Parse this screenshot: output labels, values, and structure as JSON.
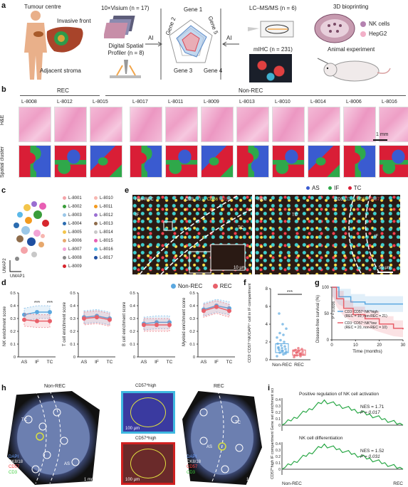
{
  "panels": [
    "a",
    "b",
    "c",
    "d",
    "e",
    "f",
    "g",
    "h",
    "i"
  ],
  "a": {
    "tumour_centre": "Tumour centre",
    "invasive_front": "Invasive front",
    "adjacent_stroma": "Adjacent stroma",
    "visium": "10×Visium (n = 17)",
    "dsp": "Digital Spatial Profiler (n = 8)",
    "ai_left": "AI",
    "ai_right": "AI",
    "genes": [
      "Gene 1",
      "Gene 2",
      "Gene 3",
      "Gene 4",
      "Gene 5"
    ],
    "lcms": "LC–MS/MS (n = 6)",
    "mihc": "mIHC (n = 231)",
    "bioprint": "3D bioprinting",
    "nk_cells": "NK cells",
    "hepg2": "HepG2",
    "animal": "Animal experiment"
  },
  "b": {
    "rec": "REC",
    "nonrec": "Non-REC",
    "samples": [
      "L-8008",
      "L-8012",
      "L-8015",
      "L-8017",
      "L-8011",
      "L-8009",
      "L-8013",
      "L-8010",
      "L-8014",
      "L-8006",
      "L-8016"
    ],
    "row_he": "H&E",
    "row_spatial": "Spatial cluster",
    "scalebar": "1 mm",
    "legend": [
      {
        "label": "AS",
        "color": "#3a5bd0"
      },
      {
        "label": "IF",
        "color": "#2fa84a"
      },
      {
        "label": "TC",
        "color": "#d91e36"
      }
    ]
  },
  "c": {
    "xlabel": "UMAP1",
    "ylabel": "UMAP2",
    "legend_left": [
      {
        "label": "L-8001",
        "color": "#f4a3a8"
      },
      {
        "label": "L-8002",
        "color": "#3a9d3a"
      },
      {
        "label": "L-8003",
        "color": "#9bc7e8"
      },
      {
        "label": "L-8004",
        "color": "#2b6cb0"
      },
      {
        "label": "L-8005",
        "color": "#f3c54b"
      },
      {
        "label": "L-8006",
        "color": "#e7a86d"
      },
      {
        "label": "L-8007",
        "color": "#f2a3d6"
      },
      {
        "label": "L-8008",
        "color": "#8a8a8a"
      },
      {
        "label": "L-8009",
        "color": "#d7262d"
      }
    ],
    "legend_right": [
      {
        "label": "L-8010",
        "color": "#f7b6b0"
      },
      {
        "label": "L-8011",
        "color": "#f39a1f"
      },
      {
        "label": "L-8012",
        "color": "#9a6ed1"
      },
      {
        "label": "L-8013",
        "color": "#8e6c4b"
      },
      {
        "label": "L-8014",
        "color": "#c8c8c8"
      },
      {
        "label": "L-8015",
        "color": "#e85fb4"
      },
      {
        "label": "L-8016",
        "color": "#5bb8e8"
      },
      {
        "label": "L-8017",
        "color": "#1f4fa0"
      }
    ]
  },
  "d": {
    "legend": [
      {
        "label": "Non-REC",
        "color": "#5ba8e0"
      },
      {
        "label": "REC",
        "color": "#e8606a"
      }
    ],
    "charts": [
      {
        "ylabel": "NK enrichment score",
        "sig": [
          "***",
          "***"
        ]
      },
      {
        "ylabel": "T cell enrichment score",
        "sig": []
      },
      {
        "ylabel": "B cell enrichment score",
        "sig": []
      },
      {
        "ylabel": "Myeloid enrichment score",
        "sig": []
      }
    ],
    "xcats": [
      "AS",
      "IF",
      "TC"
    ],
    "yticks": [
      "0",
      "0.1",
      "0.2",
      "0.3",
      "0.4",
      "0.5"
    ]
  },
  "chart_data": [
    {
      "type": "line",
      "ylabel": "NK enrichment score",
      "categories": [
        "AS",
        "IF",
        "TC"
      ],
      "ylim": [
        0,
        0.5
      ],
      "series": [
        {
          "name": "Non-REC",
          "values": [
            0.33,
            0.35,
            0.35
          ]
        },
        {
          "name": "REC",
          "values": [
            0.29,
            0.28,
            0.28
          ]
        }
      ]
    },
    {
      "type": "line",
      "ylabel": "T cell enrichment score",
      "categories": [
        "AS",
        "IF",
        "TC"
      ],
      "ylim": [
        0,
        0.5
      ],
      "series": [
        {
          "name": "Non-REC",
          "values": [
            0.31,
            0.32,
            0.3
          ]
        },
        {
          "name": "REC",
          "values": [
            0.3,
            0.31,
            0.29
          ]
        }
      ]
    },
    {
      "type": "line",
      "ylabel": "B cell enrichment score",
      "categories": [
        "AS",
        "IF",
        "TC"
      ],
      "ylim": [
        0,
        0.5
      ],
      "series": [
        {
          "name": "Non-REC",
          "values": [
            0.26,
            0.27,
            0.27
          ]
        },
        {
          "name": "REC",
          "values": [
            0.25,
            0.25,
            0.25
          ]
        }
      ]
    },
    {
      "type": "line",
      "ylabel": "Myeloid enrichment score",
      "categories": [
        "AS",
        "IF",
        "TC"
      ],
      "ylim": [
        0,
        0.5
      ],
      "series": [
        {
          "name": "Non-REC",
          "values": [
            0.37,
            0.4,
            0.38
          ]
        },
        {
          "name": "REC",
          "values": [
            0.36,
            0.39,
            0.36
          ]
        }
      ]
    },
    {
      "type": "scatter",
      "ylabel": "CD3⁻CD57⁺NK/DAPI⁺ cell in IF compartment (%)",
      "categories": [
        "Non-REC",
        "REC"
      ],
      "ylim": [
        0,
        8
      ],
      "yticks": [
        "0",
        "2",
        "4",
        "6",
        "8"
      ],
      "sig": "***"
    },
    {
      "type": "line",
      "ylabel": "Disease-free survival (%)",
      "xlabel": "Time (months)",
      "xlim": [
        0,
        30
      ],
      "ylim": [
        0,
        100
      ],
      "xticks": [
        "0",
        "10",
        "20",
        "30"
      ],
      "yticks": [
        "0",
        "50",
        "100"
      ],
      "legend": [
        "CD3⁻CD57⁺NK^high (REC = 10, non-REC = 21)",
        "CD3⁻CD57⁺NK^low (REC = 20, non-REC = 10)"
      ],
      "p": "P = 0.0036",
      "series": [
        {
          "name": "CD3⁻CD57⁺NK^high",
          "x": [
            0,
            3,
            8,
            14,
            30
          ],
          "values": [
            100,
            82,
            72,
            68,
            68
          ]
        },
        {
          "name": "CD3⁻CD57⁺NK^low",
          "x": [
            0,
            2,
            5,
            9,
            14,
            20,
            26,
            30
          ],
          "values": [
            100,
            78,
            60,
            48,
            40,
            30,
            22,
            20
          ]
        }
      ]
    }
  ],
  "e": {
    "left_title": "Non-REC",
    "right_title": "REC",
    "markers": [
      {
        "label": "CD3",
        "color": "#ffffff"
      },
      {
        "label": "CD16",
        "color": "#3fd0d0"
      },
      {
        "label": "CD56",
        "color": "#ffe14a"
      },
      {
        "label": "CD57",
        "color": "#ff4050"
      }
    ],
    "labels_left": [
      "IF",
      "TC"
    ],
    "labels_right": [
      "TC",
      "IF"
    ],
    "scale_inset": "10 µm",
    "scale_main": "50 µm"
  },
  "f": {
    "groups": [
      "Non-REC",
      "REC"
    ],
    "sig": "***",
    "ylabel": "CD3⁻CD57⁺NK/DAPI⁺ cell in IF compartment (%)",
    "yticks": [
      "0",
      "2",
      "4",
      "6",
      "8"
    ]
  },
  "g": {
    "ylabel": "Disease-free survival (%)",
    "xlabel": "Time (months)",
    "xticks": [
      "0",
      "10",
      "20",
      "30"
    ],
    "yticks": [
      "0",
      "50",
      "100"
    ],
    "p": "P = 0.0036",
    "high": "CD3⁻CD57⁺NK^high",
    "high_n": "(REC = 10, non-REC = 21)",
    "low": "CD3⁻CD57⁺NK^low",
    "low_n": "(REC = 20, non-REC = 10)"
  },
  "h": {
    "left_title": "Non-REC",
    "right_title": "REC",
    "inset_top": "CD57^high",
    "inset_bottom": "CD57^high",
    "scale_inset": "100 µm",
    "scale_main": "1 mm",
    "markers": [
      {
        "label": "DAPI",
        "color": "#6aa0ff"
      },
      {
        "label": "CK8/18",
        "color": "#ffffff"
      },
      {
        "label": "CD57",
        "color": "#ff4040"
      },
      {
        "label": "CD3",
        "color": "#40d040"
      }
    ],
    "region_labels": [
      "TC",
      "AS",
      "TC",
      "AS"
    ]
  },
  "i": {
    "ylabel": "CD57^high IF compartment Gene set enrichment score",
    "top_title": "Positive regulation of NK cell activation",
    "top_nes": "NES = 1.71",
    "top_p": "P = 0.017",
    "bottom_title": "NK cell differentiation",
    "bottom_nes": "NES = 1.52",
    "bottom_p": "P = 0.031",
    "x_left": "Non-REC",
    "x_right": "REC"
  }
}
